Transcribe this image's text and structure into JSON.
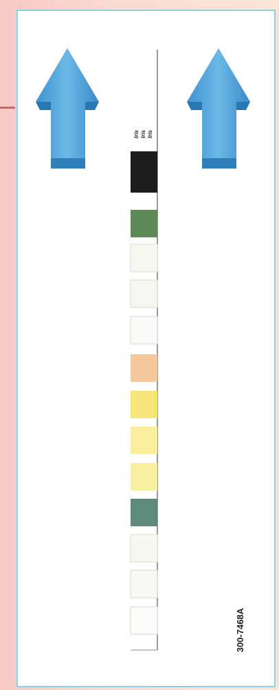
{
  "product_code": "300-7468A",
  "brand_marks": [
    "Iris",
    "Iris",
    "Iris"
  ],
  "pads": [
    {
      "color": "#1e1c1d"
    },
    {
      "color": "#5e8a58"
    },
    {
      "color": "#f7f8f0"
    },
    {
      "color": "#f6f7f1"
    },
    {
      "color": "#fafbf8"
    },
    {
      "color": "#f5c79c"
    },
    {
      "color": "#f3e577"
    },
    {
      "color": "#f8ee9c"
    },
    {
      "color": "#f7ef9f"
    },
    {
      "color": "#5f8a7b"
    },
    {
      "color": "#f7f8f0"
    },
    {
      "color": "#f9f9f3"
    },
    {
      "color": "#fcfcfa"
    }
  ]
}
